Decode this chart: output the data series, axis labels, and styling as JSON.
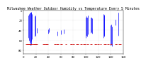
{
  "title": "Milwaukee Weather Outdoor Humidity vs Temperature Every 5 Minutes",
  "background_color": "#ffffff",
  "xlim": [
    0,
    160
  ],
  "ylim": [
    0,
    87
  ],
  "blue_color": "#0000ff",
  "red_color": "#cc0000",
  "grid_color": "#aaaaaa",
  "title_fontsize": 3.5,
  "tick_fontsize": 2.8,
  "blue_lines": [
    [
      8,
      10,
      55
    ],
    [
      9,
      8,
      60
    ],
    [
      10,
      5,
      65
    ],
    [
      11,
      5,
      70
    ],
    [
      12,
      3,
      68
    ],
    [
      13,
      5,
      62
    ],
    [
      14,
      8,
      58
    ],
    [
      18,
      12,
      52
    ],
    [
      19,
      10,
      50
    ],
    [
      22,
      35,
      45
    ],
    [
      40,
      38,
      46
    ],
    [
      41,
      36,
      44
    ],
    [
      55,
      42,
      50
    ],
    [
      60,
      40,
      48
    ],
    [
      65,
      38,
      46
    ],
    [
      100,
      15,
      55
    ],
    [
      101,
      12,
      50
    ],
    [
      102,
      14,
      52
    ],
    [
      103,
      10,
      48
    ],
    [
      108,
      15,
      45
    ],
    [
      109,
      14,
      44
    ],
    [
      110,
      16,
      46
    ],
    [
      128,
      8,
      55
    ],
    [
      129,
      10,
      50
    ],
    [
      130,
      9,
      52
    ],
    [
      140,
      30,
      70
    ],
    [
      141,
      28,
      68
    ],
    [
      142,
      32,
      72
    ],
    [
      148,
      18,
      30
    ],
    [
      152,
      5,
      50
    ]
  ],
  "red_lines": [
    [
      5,
      64,
      70
    ],
    [
      6,
      64,
      70
    ],
    [
      7,
      64,
      70
    ],
    [
      8,
      64,
      70
    ],
    [
      9,
      64,
      70
    ],
    [
      10,
      64,
      70
    ],
    [
      11,
      64,
      70
    ],
    [
      12,
      64,
      70
    ],
    [
      13,
      64,
      70
    ],
    [
      16,
      64,
      70
    ],
    [
      17,
      64,
      70
    ],
    [
      18,
      64,
      70
    ],
    [
      19,
      64,
      70
    ],
    [
      20,
      64,
      70
    ],
    [
      21,
      64,
      70
    ],
    [
      32,
      64,
      70
    ],
    [
      33,
      64,
      70
    ],
    [
      36,
      64,
      70
    ],
    [
      37,
      64,
      70
    ],
    [
      38,
      64,
      70
    ],
    [
      50,
      64,
      70
    ],
    [
      51,
      64,
      70
    ],
    [
      54,
      64,
      70
    ],
    [
      55,
      64,
      70
    ],
    [
      60,
      64,
      70
    ],
    [
      61,
      64,
      70
    ],
    [
      68,
      64,
      70
    ],
    [
      76,
      64,
      70
    ],
    [
      77,
      64,
      70
    ],
    [
      80,
      64,
      70
    ],
    [
      86,
      64,
      70
    ],
    [
      87,
      64,
      70
    ],
    [
      92,
      64,
      70
    ],
    [
      93,
      64,
      70
    ],
    [
      97,
      64,
      70
    ],
    [
      98,
      64,
      70
    ],
    [
      103,
      64,
      70
    ],
    [
      108,
      64,
      70
    ],
    [
      109,
      64,
      70
    ],
    [
      115,
      64,
      70
    ],
    [
      116,
      64,
      70
    ],
    [
      120,
      64,
      70
    ],
    [
      124,
      64,
      70
    ],
    [
      130,
      64,
      70
    ],
    [
      131,
      64,
      70
    ],
    [
      136,
      64,
      70
    ],
    [
      140,
      64,
      70
    ],
    [
      148,
      64,
      70
    ],
    [
      149,
      64,
      70
    ],
    [
      154,
      64,
      70
    ],
    [
      155,
      64,
      70
    ]
  ]
}
